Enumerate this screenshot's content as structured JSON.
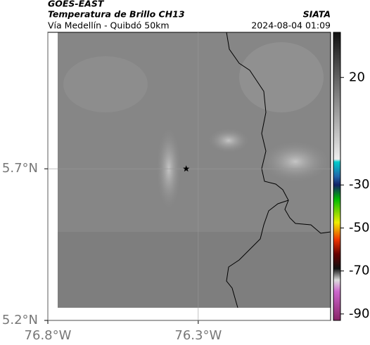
{
  "header": {
    "title": "GOES-EAST",
    "subtitle": "Temperatura de Brillo CH13",
    "region": "Vía Medellín - Quibdó 50km",
    "source": "SIATA",
    "timestamp": "2024-08-04 01:09"
  },
  "map": {
    "xlim": [
      -76.8,
      -75.86
    ],
    "ylim": [
      5.2,
      6.15
    ],
    "xticks": [
      {
        "value": -76.8,
        "label": "76.8°W"
      },
      {
        "value": -76.3,
        "label": "76.3°W"
      }
    ],
    "yticks": [
      {
        "value": 5.2,
        "label": "5.2°N"
      },
      {
        "value": 5.7,
        "label": "5.7°N"
      }
    ],
    "grid": true,
    "marker": {
      "lon": -76.34,
      "lat": 5.7
    }
  },
  "colorbar": {
    "lim": [
      -93,
      41
    ],
    "ticks": [
      20,
      -30,
      -50,
      -70,
      -90
    ]
  }
}
